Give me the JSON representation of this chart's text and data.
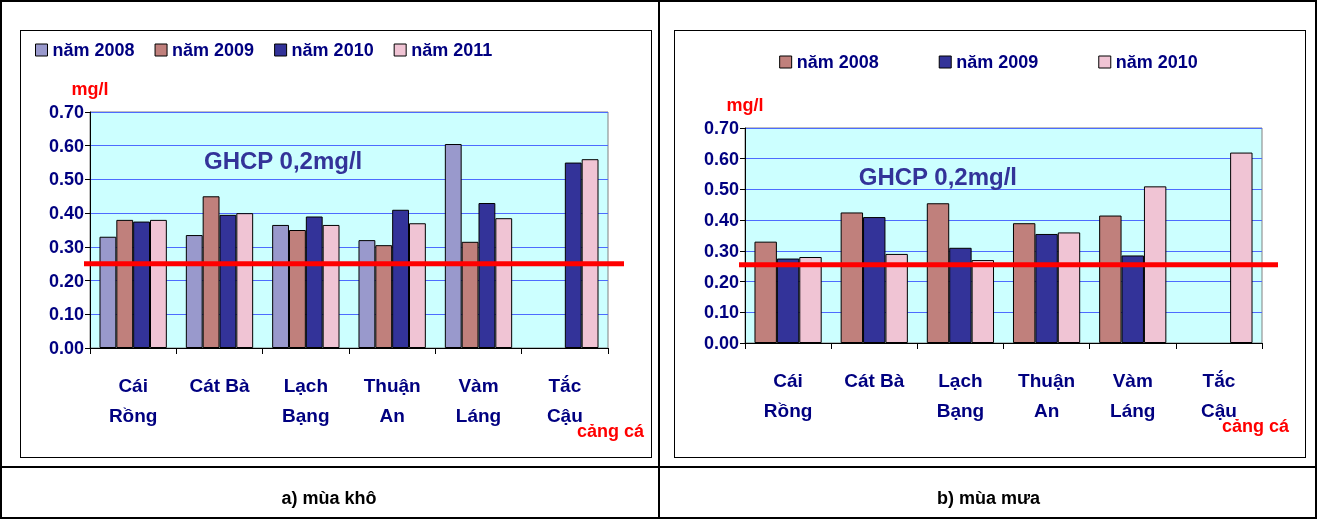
{
  "chart_data": [
    {
      "type": "bar",
      "title": "a) mùa khô",
      "ylabel": "mg/l",
      "categories": [
        "Cái Rồng",
        "Cát Bà",
        "Lạch Bạng",
        "Thuận An",
        "Vàm Láng",
        "Tắc Cậu"
      ],
      "series": [
        {
          "name": "năm 2008",
          "color": "#9999cc",
          "values": [
            0.33,
            0.335,
            0.365,
            0.32,
            0.605,
            null
          ]
        },
        {
          "name": "năm 2009",
          "color": "#c0807c",
          "values": [
            0.38,
            0.45,
            0.35,
            0.305,
            0.315,
            null
          ]
        },
        {
          "name": "năm 2010",
          "color": "#333399",
          "values": [
            0.375,
            0.395,
            0.39,
            0.41,
            0.43,
            0.55
          ]
        },
        {
          "name": "năm 2011",
          "color": "#f0c4d4",
          "values": [
            0.38,
            0.4,
            0.365,
            0.37,
            0.385,
            0.56
          ]
        }
      ],
      "ylim": [
        0,
        0.7
      ],
      "yticks": [
        {
          "value": 0,
          "label": "0.00"
        },
        {
          "value": 0.1,
          "label": "0.10"
        },
        {
          "value": 0.2,
          "label": "0.20"
        },
        {
          "value": 0.3,
          "label": "0.30"
        },
        {
          "value": 0.4,
          "label": "0.40"
        },
        {
          "value": 0.5,
          "label": "0.50"
        },
        {
          "value": 0.6,
          "label": "0.60"
        },
        {
          "value": 0.7,
          "label": "0.70"
        }
      ],
      "ref_lines": [
        {
          "axis": "y",
          "value": 0.25,
          "color": "#ff0000"
        }
      ],
      "annotations": [
        "GHCP 0,2mg/l",
        "cảng cá"
      ],
      "grid": "y",
      "legend": "top"
    },
    {
      "type": "bar",
      "title": "b) mùa mưa",
      "ylabel": "mg/l",
      "categories": [
        "Cái Rồng",
        "Cát Bà",
        "Lạch Bạng",
        "Thuận An",
        "Vàm Láng",
        "Tắc Cậu"
      ],
      "series": [
        {
          "name": "năm 2008",
          "color": "#c0807c",
          "values": [
            0.33,
            0.425,
            0.455,
            0.39,
            0.415,
            null
          ]
        },
        {
          "name": "năm 2009",
          "color": "#333399",
          "values": [
            0.275,
            0.41,
            0.31,
            0.355,
            0.285,
            null
          ]
        },
        {
          "name": "năm 2010",
          "color": "#f0c4d4",
          "values": [
            0.28,
            0.29,
            0.27,
            0.36,
            0.51,
            0.62
          ]
        }
      ],
      "ylim": [
        0,
        0.7
      ],
      "yticks": [
        {
          "value": 0,
          "label": "0.00"
        },
        {
          "value": 0.1,
          "label": "0.10"
        },
        {
          "value": 0.2,
          "label": "0.20"
        },
        {
          "value": 0.3,
          "label": "0.30"
        },
        {
          "value": 0.4,
          "label": "0.40"
        },
        {
          "value": 0.5,
          "label": "0.50"
        },
        {
          "value": 0.6,
          "label": "0.60"
        },
        {
          "value": 0.7,
          "label": "0.70"
        }
      ],
      "ref_lines": [
        {
          "axis": "y",
          "value": 0.255,
          "color": "#ff0000"
        }
      ],
      "annotations": [
        "GHCP 0,2mg/l",
        "cảng cá"
      ],
      "grid": "y",
      "legend": "top"
    }
  ]
}
